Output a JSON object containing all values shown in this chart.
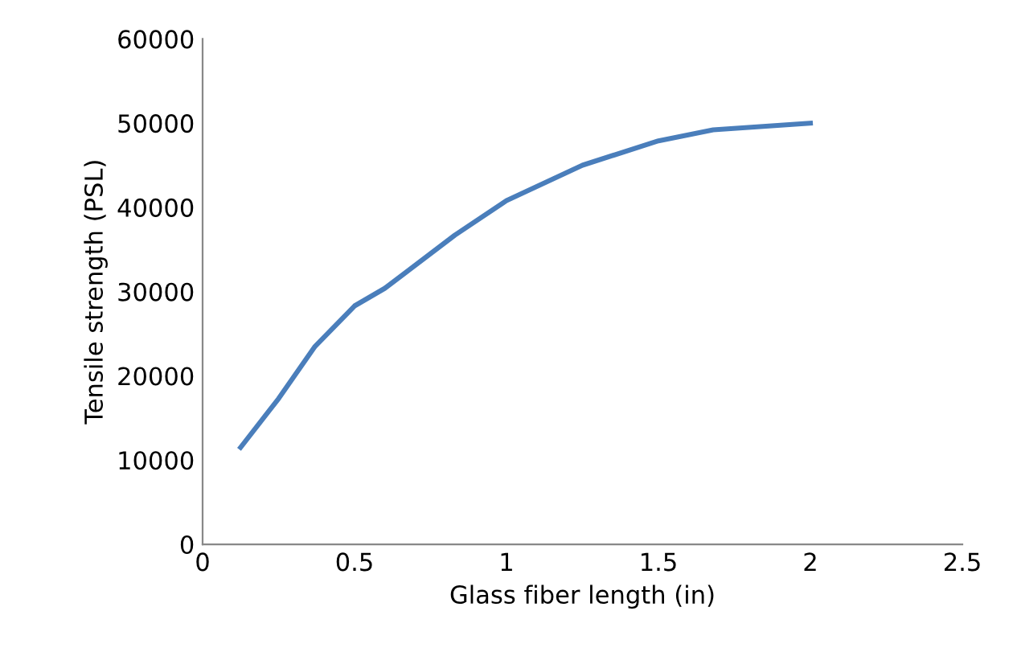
{
  "chart_data": {
    "type": "line",
    "xlabel": "Glass fiber length (in)",
    "ylabel": "Tensile strength (PSL)",
    "x": [
      0.125,
      0.25,
      0.37,
      0.5,
      0.6,
      0.83,
      1.0,
      1.25,
      1.5,
      1.68,
      2.0
    ],
    "series": [
      {
        "color": "#4a7ebb",
        "values": [
          11500,
          17300,
          23500,
          28300,
          30400,
          36700,
          40800,
          45000,
          47900,
          49200,
          50000
        ]
      }
    ],
    "xlim": [
      0,
      2.5
    ],
    "xticks": [
      0,
      0.5,
      1,
      1.5,
      2,
      2.5
    ],
    "ylim": [
      0,
      60000
    ],
    "yticks": [
      0,
      10000,
      20000,
      30000,
      40000,
      50000,
      60000
    ],
    "grid": false,
    "legend": false,
    "marker": "none",
    "line_style": "solid"
  }
}
